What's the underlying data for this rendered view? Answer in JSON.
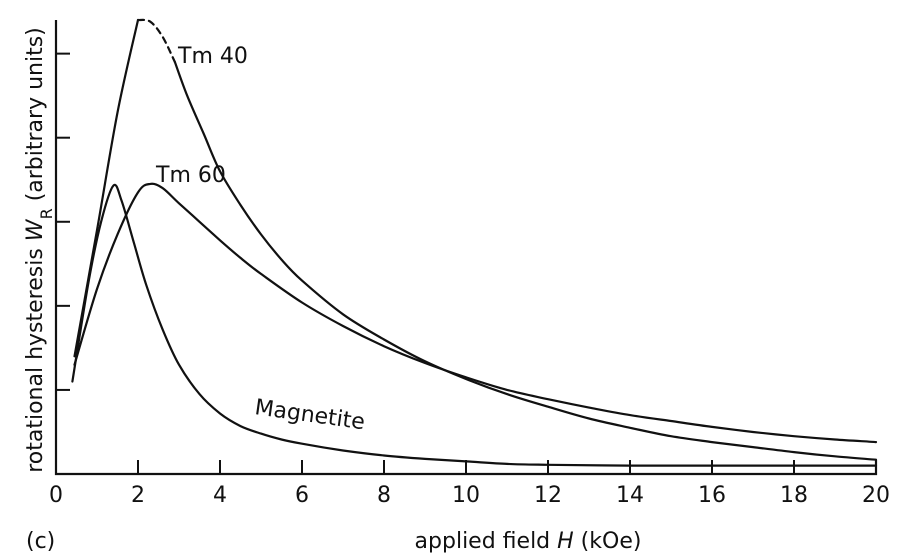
{
  "chart_data": {
    "type": "line",
    "panel_label": "(c)",
    "xlabel_pre": "applied field ",
    "xlabel_var": "H",
    "xlabel_post": " (kOe)",
    "ylabel_pre": "rotational hysteresis ",
    "ylabel_var": "W",
    "ylabel_sub": "R",
    "ylabel_post": " (arbitrary units)",
    "xlim": [
      0,
      20
    ],
    "ylim": [
      0,
      5.4
    ],
    "x_ticks": [
      0,
      2,
      4,
      6,
      8,
      10,
      12,
      14,
      16,
      18,
      20
    ],
    "x_tick_labels": [
      "0",
      "2",
      "4",
      "6",
      "8",
      "10",
      "12",
      "14",
      "16",
      "18",
      "20"
    ],
    "y_ticks": [
      1,
      2,
      3,
      4,
      5
    ],
    "y_tick_labels": [],
    "grid": false,
    "series": [
      {
        "name": "Tm 40",
        "x": [
          0.45,
          1.0,
          1.5,
          2.0,
          2.3,
          2.6,
          2.9,
          3.2,
          3.6,
          4.0,
          4.5,
          5.0,
          5.5,
          6.0,
          7.0,
          8.0,
          9.0,
          10.0,
          11.0,
          12.0,
          13.0,
          14.0,
          15.0,
          16.0,
          17.0,
          18.0,
          19.0,
          20.0
        ],
        "y": [
          1.4,
          2.9,
          4.3,
          5.4,
          5.38,
          5.2,
          4.9,
          4.5,
          4.05,
          3.6,
          3.2,
          2.85,
          2.55,
          2.3,
          1.9,
          1.6,
          1.34,
          1.13,
          0.95,
          0.8,
          0.66,
          0.55,
          0.45,
          0.38,
          0.32,
          0.26,
          0.21,
          0.17
        ],
        "dashed_range": [
          2.0,
          2.9
        ]
      },
      {
        "name": "Tm 60",
        "x": [
          0.45,
          1.0,
          1.5,
          2.0,
          2.3,
          2.6,
          3.0,
          3.5,
          4.0,
          4.5,
          5.0,
          6.0,
          7.0,
          8.0,
          9.0,
          10.0,
          11.0,
          12.0,
          13.0,
          14.0,
          15.0,
          16.0,
          17.0,
          18.0,
          19.0,
          20.0
        ],
        "y": [
          1.3,
          2.2,
          2.85,
          3.35,
          3.45,
          3.4,
          3.22,
          3.0,
          2.78,
          2.57,
          2.38,
          2.04,
          1.76,
          1.52,
          1.32,
          1.15,
          1.0,
          0.89,
          0.79,
          0.7,
          0.63,
          0.56,
          0.5,
          0.45,
          0.41,
          0.38
        ]
      },
      {
        "name": "Magnetite",
        "x": [
          0.4,
          0.8,
          1.1,
          1.4,
          1.6,
          1.9,
          2.2,
          2.6,
          3.0,
          3.5,
          4.0,
          4.5,
          5.0,
          5.5,
          6.0,
          7.0,
          8.0,
          9.0,
          10.0,
          11.0,
          12.0,
          14.0,
          16.0,
          18.0,
          20.0
        ],
        "y": [
          1.1,
          2.3,
          3.0,
          3.43,
          3.25,
          2.75,
          2.25,
          1.72,
          1.3,
          0.95,
          0.72,
          0.57,
          0.48,
          0.41,
          0.36,
          0.28,
          0.22,
          0.18,
          0.15,
          0.12,
          0.11,
          0.1,
          0.1,
          0.1,
          0.1
        ]
      }
    ]
  }
}
